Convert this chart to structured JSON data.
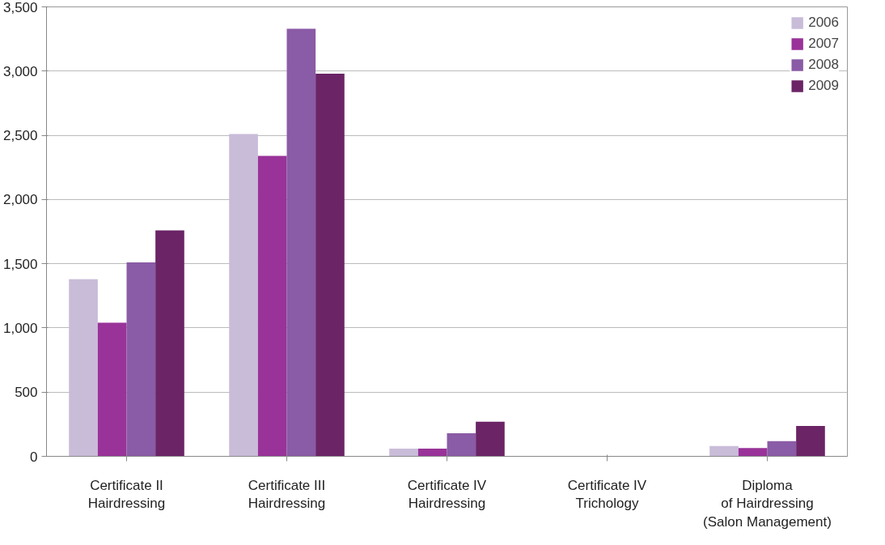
{
  "chart_data": {
    "type": "bar",
    "categories": [
      "Certificate II\nHairdressing",
      "Certificate III\nHairdressing",
      "Certificate IV\nHairdressing",
      "Certificate IV\nTrichology",
      "Diploma\nof Hairdressing\n(Salon Management)"
    ],
    "series": [
      {
        "name": "2006",
        "color": "#c9bcd9",
        "values": [
          1380,
          2510,
          60,
          0,
          80
        ]
      },
      {
        "name": "2007",
        "color": "#993399",
        "values": [
          1040,
          2340,
          60,
          0,
          65
        ]
      },
      {
        "name": "2008",
        "color": "#8a5ba6",
        "values": [
          1510,
          3330,
          180,
          0,
          118
        ]
      },
      {
        "name": "2009",
        "color": "#6b2466",
        "values": [
          1760,
          2980,
          270,
          0,
          236
        ]
      }
    ],
    "ylim": [
      0,
      3500
    ],
    "yticks": [
      {
        "value": 0,
        "label": "0"
      },
      {
        "value": 500,
        "label": "500"
      },
      {
        "value": 1000,
        "label": "1,000"
      },
      {
        "value": 1500,
        "label": "1,500"
      },
      {
        "value": 2000,
        "label": "2,000"
      },
      {
        "value": 2500,
        "label": "2,500"
      },
      {
        "value": 3000,
        "label": "3,000"
      },
      {
        "value": 3500,
        "label": "3,500"
      }
    ],
    "grid": "y",
    "legend": "top right"
  }
}
